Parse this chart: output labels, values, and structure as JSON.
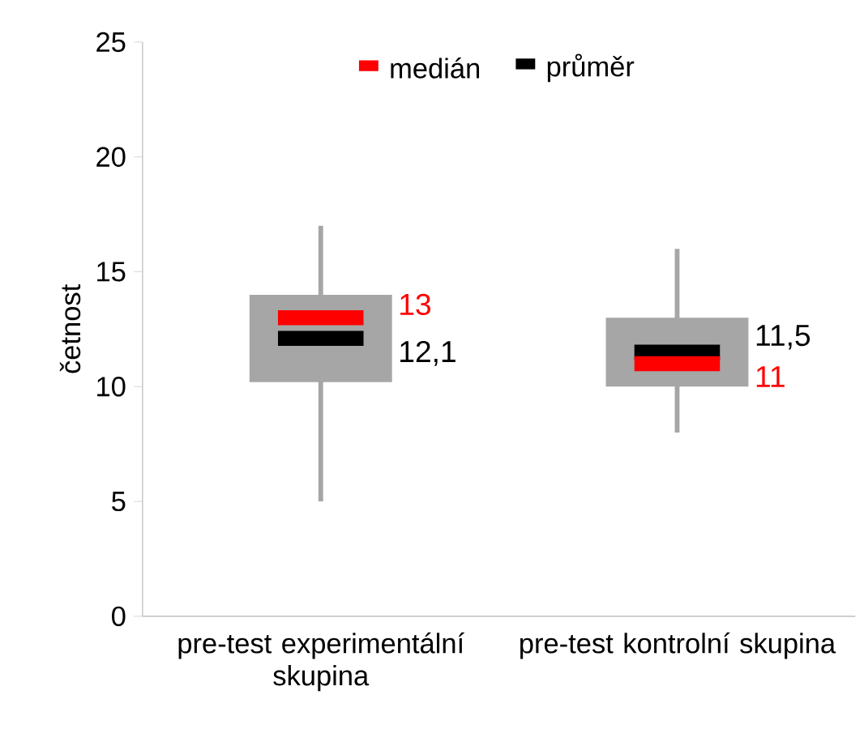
{
  "chart_data": {
    "type": "box",
    "ylabel": "četnost",
    "categories": [
      "pre-test experimentální skupina",
      "pre-test kontrolní skupina"
    ],
    "ylim": [
      0,
      25
    ],
    "yticks": [
      0,
      5,
      10,
      15,
      20,
      25
    ],
    "grid": false,
    "color": "#a6a6a6",
    "boxes": [
      {
        "low": 5,
        "q1": 10.2,
        "median": 13,
        "q3": 14,
        "high": 17,
        "mean": 12.1
      },
      {
        "low": 8,
        "q1": 10,
        "median": 11,
        "q3": 13,
        "high": 16,
        "mean": 11.5
      }
    ],
    "annotations": [
      "medián",
      "průměr",
      {
        "text": "13",
        "x": "pre-test experimentální skupina",
        "y": 13
      },
      {
        "text": "12,1",
        "x": "pre-test experimentální skupina",
        "y": 12.1
      },
      {
        "text": "11,5",
        "x": "pre-test kontrolní skupina",
        "y": 11.5
      },
      {
        "text": "11",
        "x": "pre-test kontrolní skupina",
        "y": 11
      }
    ]
  }
}
